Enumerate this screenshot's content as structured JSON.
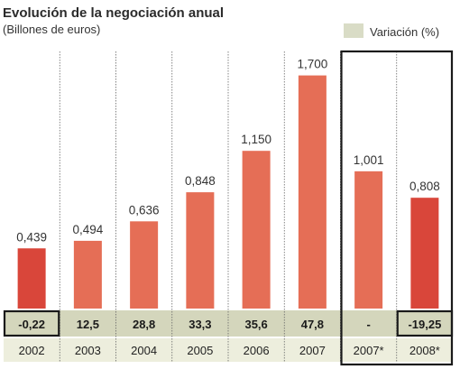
{
  "chart_data": {
    "type": "bar",
    "title": "Evolución de la negociación anual",
    "subtitle": "(Billones de euros)",
    "legend": {
      "label": "Variación (%)",
      "position": "top-right",
      "color": "#d9dcc6"
    },
    "categories": [
      "2002",
      "2003",
      "2004",
      "2005",
      "2006",
      "2007",
      "2007*",
      "2008*"
    ],
    "value_labels": [
      "0,439",
      "0,494",
      "0,636",
      "0,848",
      "1,150",
      "1,700",
      "1,001",
      "0,808"
    ],
    "values": [
      0.439,
      0.494,
      0.636,
      0.848,
      1.15,
      1.7,
      1.001,
      0.808
    ],
    "variation_labels": [
      "-0,22",
      "12,5",
      "28,8",
      "33,3",
      "35,6",
      "47,8",
      "-",
      "-19,25"
    ],
    "highlighted_variations": [
      0,
      7
    ],
    "highlighted_group": [
      6,
      7
    ],
    "bar_colors": [
      "#d9463a",
      "#e56e56",
      "#e56e56",
      "#e56e56",
      "#e56e56",
      "#e56e56",
      "#e56e56",
      "#d9463a"
    ],
    "ylim": [
      0,
      1.75
    ],
    "colors": {
      "variation_band": "#d4d6bc",
      "year_band": "#edeedd",
      "grid": "#666666",
      "frame": "#1a1a1a"
    }
  }
}
